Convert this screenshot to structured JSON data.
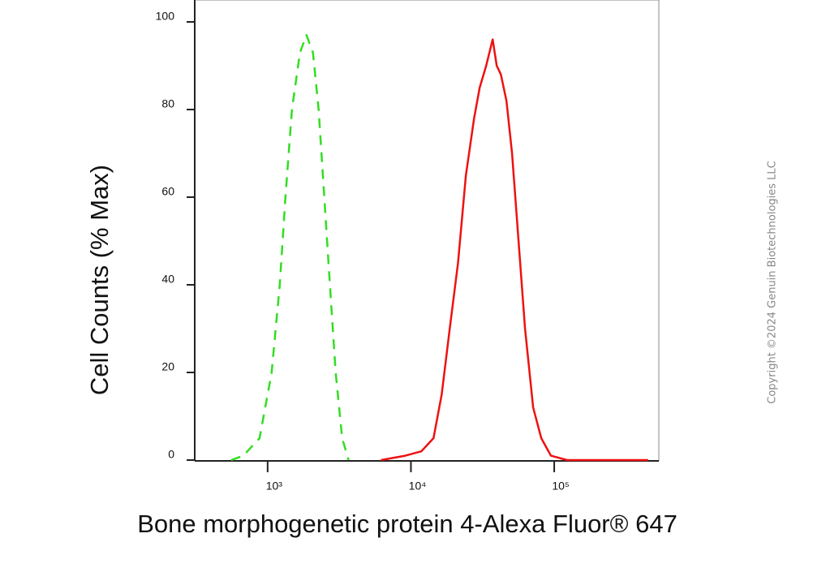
{
  "chart_data": {
    "type": "line",
    "xlabel": "Bone morphogenetic protein 4-Alexa Fluor® 647",
    "ylabel": "Cell Counts (% Max)",
    "copyright": "Copyright ©2024 Genuin Biotechnologies LLC",
    "xscale": "log",
    "xlim": [
      310,
      537000
    ],
    "ylim": [
      0,
      105
    ],
    "xticks": [
      {
        "value": 1000,
        "label": "10³"
      },
      {
        "value": 10000,
        "label": "10⁴"
      },
      {
        "value": 100000,
        "label": "10⁵"
      }
    ],
    "yticks": [
      0,
      20,
      40,
      60,
      80,
      100
    ],
    "series": [
      {
        "color": "#33dd22",
        "dash": true,
        "x": [
          557,
          677,
          879,
          1067,
          1215,
          1331,
          1477,
          1682,
          1866,
          2071,
          2269,
          2485,
          2722,
          2985,
          3311,
          3673
        ],
        "values": [
          0,
          1,
          5,
          20,
          40,
          60,
          80,
          93,
          97,
          93,
          80,
          60,
          40,
          20,
          5,
          0
        ]
      },
      {
        "color": "#ee1111",
        "dash": false,
        "x": [
          6180,
          9120,
          11830,
          14380,
          16400,
          18660,
          21300,
          24200,
          27600,
          30200,
          33500,
          37200,
          39700,
          42400,
          46400,
          50800,
          56400,
          62600,
          71300,
          81200,
          94800,
          123000,
          452000
        ],
        "values": [
          0,
          1,
          2,
          5,
          15,
          30,
          45,
          65,
          78,
          85,
          90,
          96,
          90,
          88,
          82,
          70,
          50,
          30,
          12,
          5,
          1,
          0,
          0
        ]
      }
    ]
  }
}
